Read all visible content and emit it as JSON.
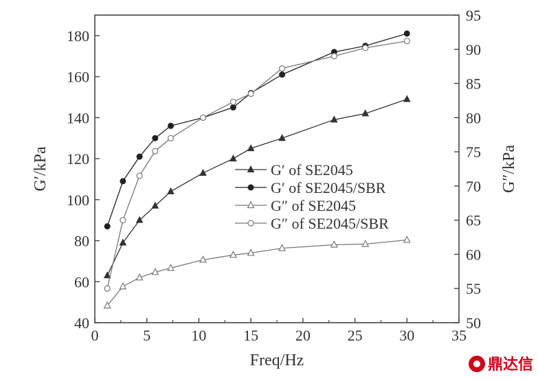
{
  "chart_data": {
    "type": "line",
    "xlabel": "Freq/Hz",
    "ylabel_left": "G′/kPa",
    "ylabel_right": "G″/kPa",
    "xlim": [
      0,
      35
    ],
    "ylim_left": [
      40,
      190
    ],
    "ylim_right": [
      50,
      95
    ],
    "x_ticks": [
      "0",
      "5",
      "10",
      "15",
      "20",
      "25",
      "30",
      "35"
    ],
    "y_left_ticks": [
      "40",
      "60",
      "80",
      "100",
      "120",
      "140",
      "160",
      "180"
    ],
    "y_right_ticks": [
      "50",
      "55",
      "60",
      "65",
      "70",
      "75",
      "80",
      "85",
      "90",
      "95"
    ],
    "grid": false,
    "legend_position": "center-right",
    "series": [
      {
        "name": "G′ of SE2045",
        "axis": "left",
        "marker": "filled-triangle",
        "x": [
          1.2,
          2.7,
          4.3,
          5.8,
          7.3,
          10.4,
          13.3,
          15.0,
          18.0,
          23.0,
          26.0,
          30.0
        ],
        "y": [
          63,
          79,
          90,
          97,
          104,
          113,
          120,
          125,
          130,
          139,
          142,
          149
        ]
      },
      {
        "name": "G′ of SE2045/SBR",
        "axis": "left",
        "marker": "filled-circle",
        "x": [
          1.2,
          2.7,
          4.3,
          5.8,
          7.3,
          10.4,
          13.3,
          15.0,
          18.0,
          23.0,
          26.0,
          30.0
        ],
        "y": [
          87,
          109,
          121,
          130,
          136,
          140,
          145,
          152,
          161,
          172,
          175,
          181
        ]
      },
      {
        "name": "G″ of SE2045",
        "axis": "right",
        "marker": "open-triangle",
        "x": [
          1.2,
          2.7,
          4.3,
          5.8,
          7.3,
          10.4,
          13.3,
          15.0,
          18.0,
          23.0,
          26.0,
          30.0
        ],
        "y": [
          52.5,
          55.3,
          56.6,
          57.4,
          58.0,
          59.2,
          59.9,
          60.2,
          60.9,
          61.4,
          61.5,
          62.1
        ]
      },
      {
        "name": "G″ of SE2045/SBR",
        "axis": "right",
        "marker": "open-circle",
        "x": [
          1.2,
          2.7,
          4.3,
          5.8,
          7.3,
          10.4,
          13.3,
          15.0,
          18.0,
          23.0,
          26.0,
          30.0
        ],
        "y": [
          55.0,
          65.0,
          71.5,
          75.1,
          77.0,
          80.0,
          82.3,
          83.5,
          87.2,
          89.0,
          90.2,
          91.2
        ]
      }
    ]
  },
  "watermark": {
    "text": "鼎达信",
    "color": "#d0021b"
  }
}
